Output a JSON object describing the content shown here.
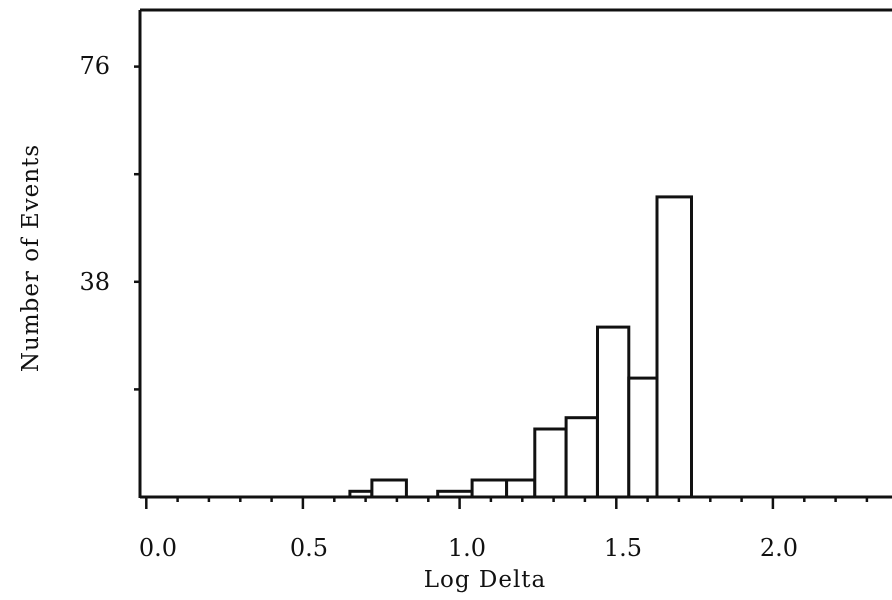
{
  "chart_data": {
    "type": "bar",
    "title": "",
    "xlabel": "Log Delta",
    "ylabel": "Number of Events",
    "x_ticks": [
      "0.0",
      "0.5",
      "1.0",
      "1.5",
      "2.0"
    ],
    "y_ticks": [
      "38",
      "76"
    ],
    "xlim": [
      -0.02,
      2.38
    ],
    "ylim": [
      0,
      86
    ],
    "bins": [
      {
        "x0": 0.65,
        "x1": 0.72,
        "value": 1
      },
      {
        "x0": 0.72,
        "x1": 0.83,
        "value": 3
      },
      {
        "x0": 0.93,
        "x1": 1.04,
        "value": 1
      },
      {
        "x0": 1.04,
        "x1": 1.15,
        "value": 3
      },
      {
        "x0": 1.15,
        "x1": 1.24,
        "value": 3
      },
      {
        "x0": 1.24,
        "x1": 1.34,
        "value": 12
      },
      {
        "x0": 1.34,
        "x1": 1.44,
        "value": 14
      },
      {
        "x0": 1.44,
        "x1": 1.54,
        "value": 30
      },
      {
        "x0": 1.54,
        "x1": 1.63,
        "value": 21
      },
      {
        "x0": 1.63,
        "x1": 1.74,
        "value": 53
      }
    ],
    "grid": false,
    "legend": "none"
  }
}
